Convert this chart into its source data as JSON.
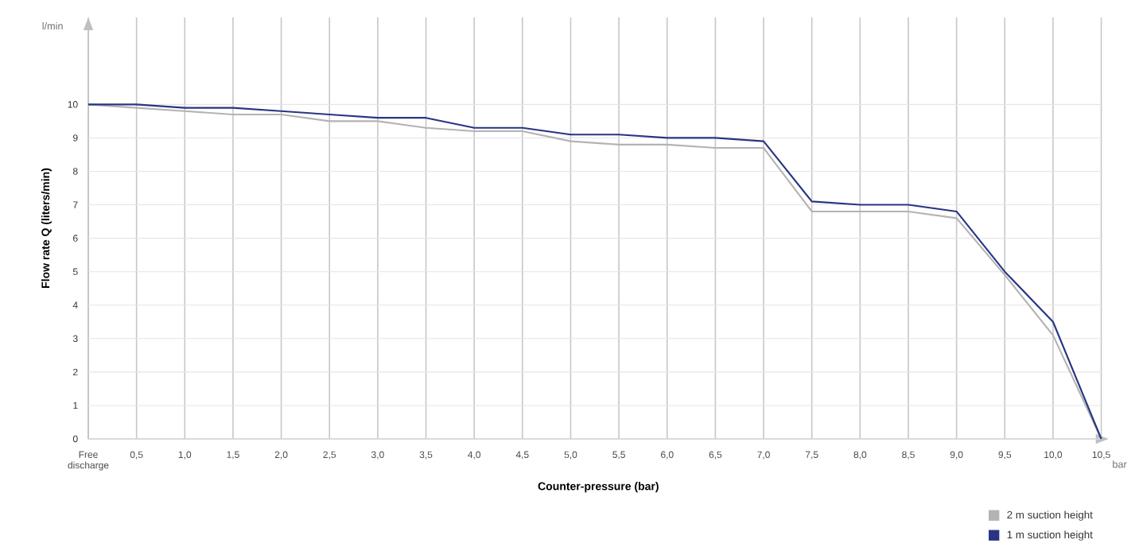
{
  "chart_data": {
    "type": "line",
    "xlabel": "Counter-pressure (bar)",
    "ylabel": "Flow rate Q (liters/min)",
    "annotations": [
      "l/min",
      "bar"
    ],
    "categories": [
      "Free discharge",
      "0,5",
      "1,0",
      "1,5",
      "2,0",
      "2,5",
      "3,0",
      "3,5",
      "4,0",
      "4,5",
      "5,0",
      "5,5",
      "6,0",
      "6,5",
      "7,0",
      "7,5",
      "8,0",
      "8,5",
      "9,0",
      "9,5",
      "10,0",
      "10,5"
    ],
    "series": [
      {
        "name": "2 m suction height",
        "color": "#b3b3b3",
        "values": [
          10,
          9.9,
          9.8,
          9.7,
          9.7,
          9.5,
          9.5,
          9.3,
          9.2,
          9.2,
          8.9,
          8.8,
          8.8,
          8.7,
          8.7,
          6.8,
          6.8,
          6.8,
          6.6,
          4.9,
          3.1,
          0
        ]
      },
      {
        "name": "1 m suction height",
        "color": "#283583",
        "values": [
          10,
          10,
          9.9,
          9.9,
          9.8,
          9.7,
          9.6,
          9.6,
          9.3,
          9.3,
          9.1,
          9.1,
          9.0,
          9.0,
          8.9,
          7.1,
          7.0,
          7.0,
          6.8,
          5.0,
          3.5,
          0
        ]
      }
    ],
    "ylim": [
      0,
      12.6
    ],
    "yticks": [
      0,
      1,
      2,
      3,
      4,
      5,
      6,
      7,
      8,
      9,
      10
    ],
    "grid": true,
    "legend": "bottom right",
    "marker": "none",
    "line_style": "solid"
  }
}
